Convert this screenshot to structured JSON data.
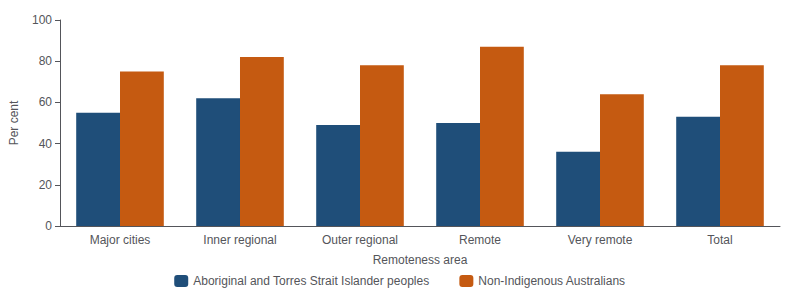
{
  "chart_data": {
    "type": "bar",
    "xlabel": "Remoteness area",
    "ylabel": "Per cent",
    "categories": [
      "Major cities",
      "Inner regional",
      "Outer regional",
      "Remote",
      "Very remote",
      "Total"
    ],
    "series": [
      {
        "name": "Aboriginal and Torres Strait Islander peoples",
        "color": "#1F4E79",
        "values": [
          55,
          62,
          49,
          50,
          36,
          53
        ]
      },
      {
        "name": "Non-Indigenous Australians",
        "color": "#C55A11",
        "values": [
          75,
          82,
          78,
          87,
          64,
          78
        ]
      }
    ],
    "ylim": [
      0,
      100
    ],
    "yticks": [
      0,
      20,
      40,
      60,
      80,
      100
    ],
    "grid": false,
    "legend": "bottom"
  }
}
